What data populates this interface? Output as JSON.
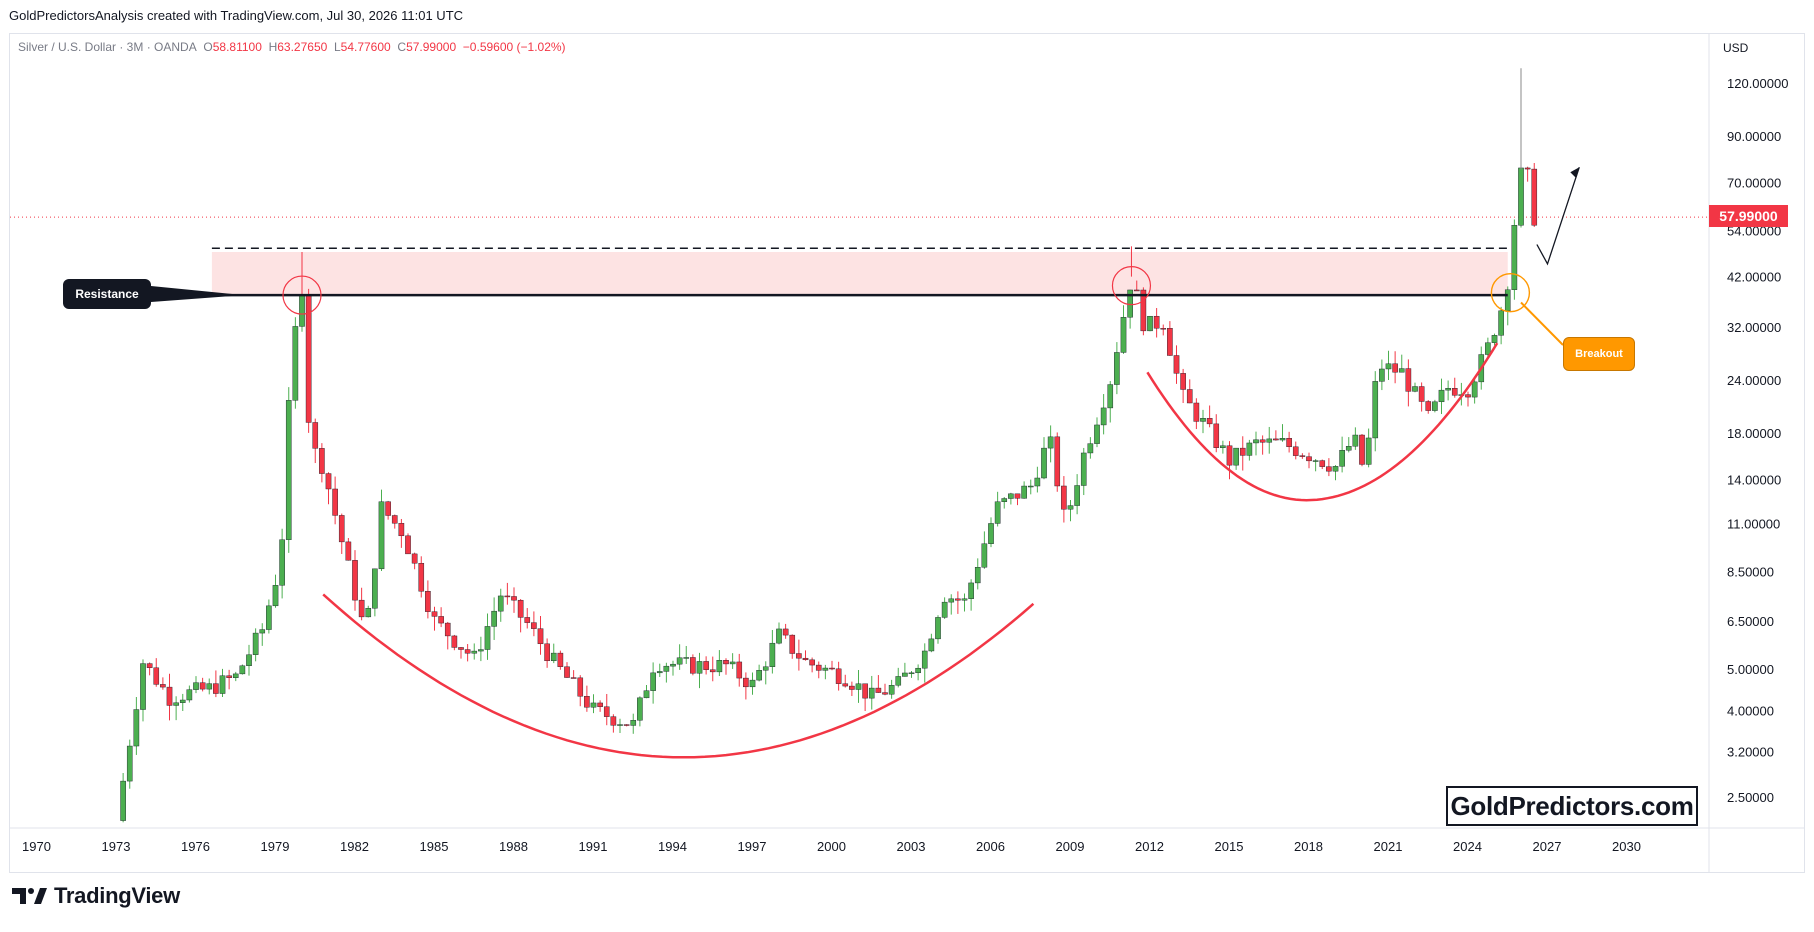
{
  "header": {
    "caption": "GoldPredictorsAnalysis created with TradingView.com, Jul 30, 2026 11:01 UTC"
  },
  "legend": {
    "symbol": "Silver / U.S. Dollar · 3M · OANDA",
    "open_label": "O",
    "open": "58.81100",
    "high_label": "H",
    "high": "63.27650",
    "low_label": "L",
    "low": "54.77600",
    "close_label": "C",
    "close": "57.99000",
    "change": "−0.59600 (−1.02%)"
  },
  "currency": "USD",
  "last_price": "57.99000",
  "annotations": {
    "resistance": "Resistance",
    "breakout": "Breakout"
  },
  "watermark": "GoldPredictors.com",
  "footer": {
    "brand": "TradingView"
  },
  "colors": {
    "up": "#4caf50",
    "down": "#f23645",
    "resistance_zone": "#fde3e3",
    "arc": "#f23645",
    "breakout": "#ff9800"
  },
  "chart_data": {
    "type": "candlestick",
    "scale": "log",
    "ylim": [
      2.2,
      140
    ],
    "xlim": [
      1970,
      2032
    ],
    "y_ticks": [
      "120.00000",
      "90.00000",
      "70.00000",
      "54.00000",
      "42.00000",
      "32.00000",
      "24.00000",
      "18.00000",
      "14.00000",
      "11.00000",
      "8.50000",
      "6.50000",
      "5.00000",
      "4.00000",
      "3.20000",
      "2.50000"
    ],
    "x_ticks": [
      "1970",
      "1973",
      "1976",
      "1979",
      "1982",
      "1985",
      "1988",
      "1991",
      "1994",
      "1997",
      "2000",
      "2003",
      "2006",
      "2009",
      "2012",
      "2015",
      "2018",
      "2021",
      "2024",
      "2027",
      "2030"
    ],
    "resistance_level": 38,
    "resistance_zone": [
      38,
      48
    ],
    "dashed_level": 49,
    "last_price_line": 57.99,
    "series_path_anchors": [
      [
        1973.0,
        2.2
      ],
      [
        1974.0,
        5.2
      ],
      [
        1975.0,
        4.3
      ],
      [
        1976.5,
        4.5
      ],
      [
        1977.5,
        4.8
      ],
      [
        1978.5,
        6.2
      ],
      [
        1979.2,
        9.0
      ],
      [
        1979.6,
        27
      ],
      [
        1980.0,
        40
      ],
      [
        1980.3,
        17
      ],
      [
        1980.8,
        15
      ],
      [
        1981.5,
        10
      ],
      [
        1982.4,
        6.0
      ],
      [
        1983.0,
        12
      ],
      [
        1983.8,
        10.5
      ],
      [
        1985.0,
        6.5
      ],
      [
        1986.5,
        5.3
      ],
      [
        1987.5,
        7.5
      ],
      [
        1988.5,
        6.4
      ],
      [
        1989.5,
        5.2
      ],
      [
        1991.0,
        4.0
      ],
      [
        1992.5,
        3.7
      ],
      [
        1993.3,
        5.2
      ],
      [
        1994.5,
        5.1
      ],
      [
        1996.0,
        5.1
      ],
      [
        1997.0,
        4.6
      ],
      [
        1998.0,
        6.0
      ],
      [
        1999.0,
        5.2
      ],
      [
        2000.5,
        4.8
      ],
      [
        2001.5,
        4.3
      ],
      [
        2002.5,
        4.6
      ],
      [
        2003.5,
        5.5
      ],
      [
        2004.2,
        7.5
      ],
      [
        2005.0,
        7.2
      ],
      [
        2006.2,
        12
      ],
      [
        2007.5,
        13.5
      ],
      [
        2008.2,
        17.5
      ],
      [
        2008.8,
        11
      ],
      [
        2009.5,
        16
      ],
      [
        2010.5,
        24
      ],
      [
        2011.3,
        42
      ],
      [
        2011.8,
        32
      ],
      [
        2012.5,
        33
      ],
      [
        2013.2,
        22
      ],
      [
        2014.0,
        19
      ],
      [
        2015.0,
        15.5
      ],
      [
        2016.0,
        17
      ],
      [
        2017.0,
        17
      ],
      [
        2018.0,
        16
      ],
      [
        2019.0,
        15
      ],
      [
        2019.7,
        17.5
      ],
      [
        2020.1,
        14.5
      ],
      [
        2020.6,
        26
      ],
      [
        2021.5,
        25
      ],
      [
        2022.5,
        19.5
      ],
      [
        2023.2,
        23
      ],
      [
        2024.0,
        23
      ],
      [
        2024.7,
        28
      ],
      [
        2025.3,
        36
      ],
      [
        2025.6,
        44
      ],
      [
        2025.9,
        72
      ],
      [
        2026.2,
        75
      ],
      [
        2026.5,
        58
      ]
    ],
    "forecast_path": [
      [
        2026.6,
        50
      ],
      [
        2027.0,
        45
      ],
      [
        2028.2,
        76
      ]
    ]
  }
}
